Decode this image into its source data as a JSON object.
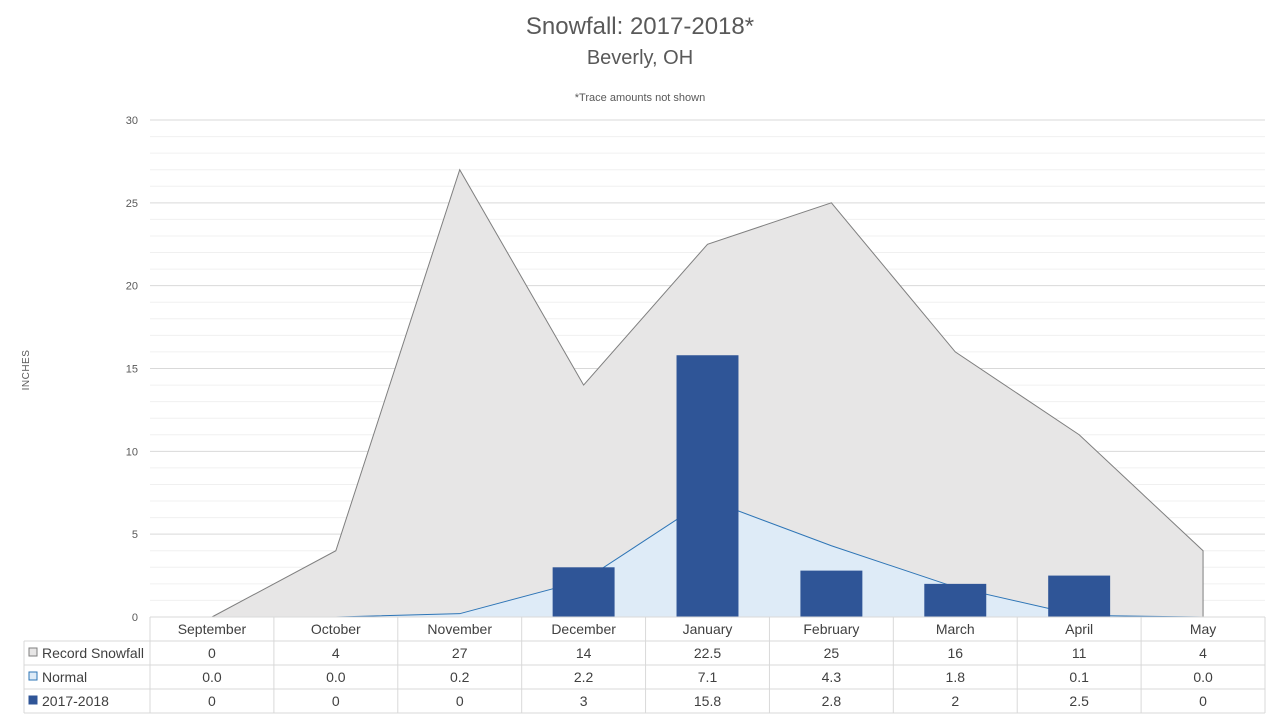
{
  "chart_data": {
    "type": "bar",
    "title": "Snowfall: 2017-2018*",
    "subtitle": "Beverly, OH",
    "note": "*Trace amounts not shown",
    "ylabel": "INCHES",
    "xlabel": "",
    "ylim": [
      0,
      30
    ],
    "yticks": [
      0,
      5,
      10,
      15,
      20,
      25,
      30
    ],
    "grid": true,
    "legend_position": "data-table-left",
    "categories": [
      "September",
      "October",
      "November",
      "December",
      "January",
      "February",
      "March",
      "April",
      "May"
    ],
    "series": [
      {
        "name": "Record Snowfall",
        "type": "area",
        "color": "#e7e6e6",
        "stroke": "#7f7f7f",
        "values": [
          0,
          4,
          27,
          14,
          22.5,
          25,
          16,
          11,
          4
        ],
        "labels": [
          "0",
          "4",
          "27",
          "14",
          "22.5",
          "25",
          "16",
          "11",
          "4"
        ]
      },
      {
        "name": "Normal",
        "type": "area",
        "color": "#deebf7",
        "stroke": "#2e75b6",
        "values": [
          0.0,
          0.0,
          0.2,
          2.2,
          7.1,
          4.3,
          1.8,
          0.1,
          0.0
        ],
        "labels": [
          "0.0",
          "0.0",
          "0.2",
          "2.2",
          "7.1",
          "4.3",
          "1.8",
          "0.1",
          "0.0"
        ]
      },
      {
        "name": "2017-2018",
        "type": "bar",
        "color": "#2f5597",
        "stroke": "#2f5597",
        "values": [
          0,
          0,
          0,
          3,
          15.8,
          2.8,
          2,
          2.5,
          0
        ],
        "labels": [
          "0",
          "0",
          "0",
          "3",
          "15.8",
          "2.8",
          "2",
          "2.5",
          "0"
        ]
      }
    ]
  }
}
